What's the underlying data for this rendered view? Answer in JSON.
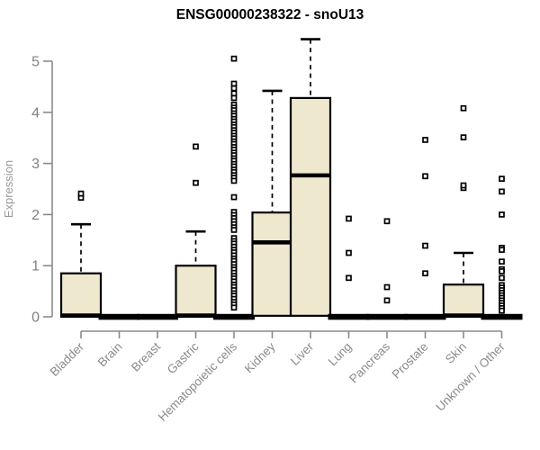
{
  "chart_data": {
    "type": "boxplot",
    "title": "ENSG00000238322 - snoU13",
    "ylabel": "Expression",
    "xlabel": "",
    "ylim": [
      0,
      5
    ],
    "yticks": [
      0,
      1,
      2,
      3,
      4,
      5
    ],
    "grid": false,
    "legend": "none",
    "categories": [
      "Bladder",
      "Brain",
      "Breast",
      "Gastric",
      "Hematopoietic cells",
      "Kidney",
      "Liver",
      "Lung",
      "Pancreas",
      "Prostate",
      "Skin",
      "Unknown / Other"
    ],
    "series": [
      {
        "category": "Bladder",
        "whisker_low": 0,
        "q1": 0,
        "median": 0,
        "q3": 0.85,
        "whisker_high": 1.81,
        "outliers": [
          2.33,
          2.41
        ]
      },
      {
        "category": "Brain",
        "whisker_low": 0,
        "q1": 0,
        "median": 0,
        "q3": 0,
        "whisker_high": 0,
        "outliers": []
      },
      {
        "category": "Breast",
        "whisker_low": 0,
        "q1": 0,
        "median": 0,
        "q3": 0,
        "whisker_high": 0,
        "outliers": []
      },
      {
        "category": "Gastric",
        "whisker_low": 0,
        "q1": 0,
        "median": 0,
        "q3": 1.0,
        "whisker_high": 1.67,
        "outliers": [
          2.62,
          3.33
        ]
      },
      {
        "category": "Hematopoietic cells",
        "whisker_low": 0,
        "q1": 0,
        "median": 0,
        "q3": 0,
        "whisker_high": 0,
        "outliers": [
          5.05,
          4.56,
          4.47,
          4.37,
          4.28,
          4.15,
          4.09,
          4.04,
          3.98,
          3.93,
          3.87,
          3.82,
          3.76,
          3.71,
          3.65,
          3.6,
          3.54,
          3.49,
          3.43,
          3.38,
          3.32,
          3.27,
          3.21,
          3.16,
          3.1,
          3.05,
          2.99,
          2.94,
          2.88,
          2.83,
          2.77,
          2.72,
          2.66,
          2.34,
          2.05,
          1.99,
          1.93,
          1.87,
          1.81,
          1.75,
          1.7,
          1.54,
          1.48,
          1.43,
          1.37,
          1.31,
          1.26,
          1.2,
          1.14,
          1.09,
          1.03,
          0.97,
          0.92,
          0.86,
          0.8,
          0.75,
          0.69,
          0.63,
          0.58,
          0.52,
          0.46,
          0.41,
          0.35,
          0.29,
          0.24,
          0.18
        ]
      },
      {
        "category": "Kidney",
        "whisker_low": 0,
        "q1": 0.02,
        "median": 1.43,
        "q3": 2.04,
        "whisker_high": 4.42,
        "outliers": []
      },
      {
        "category": "Liver",
        "whisker_low": 0,
        "q1": 0.02,
        "median": 2.74,
        "q3": 4.28,
        "whisker_high": 5.43,
        "outliers": []
      },
      {
        "category": "Lung",
        "whisker_low": 0,
        "q1": 0,
        "median": 0,
        "q3": 0,
        "whisker_high": 0,
        "outliers": [
          0.76,
          1.25,
          1.92
        ]
      },
      {
        "category": "Pancreas",
        "whisker_low": 0,
        "q1": 0,
        "median": 0,
        "q3": 0,
        "whisker_high": 0,
        "outliers": [
          0.32,
          0.58,
          1.87
        ]
      },
      {
        "category": "Prostate",
        "whisker_low": 0,
        "q1": 0,
        "median": 0,
        "q3": 0,
        "whisker_high": 0,
        "outliers": [
          0.85,
          1.39,
          2.75,
          3.46
        ]
      },
      {
        "category": "Skin",
        "whisker_low": 0,
        "q1": 0,
        "median": 0,
        "q3": 0.63,
        "whisker_high": 1.25,
        "outliers": [
          2.52,
          2.57,
          3.51,
          4.08
        ]
      },
      {
        "category": "Unknown / Other",
        "whisker_low": 0,
        "q1": 0,
        "median": 0,
        "q3": 0,
        "whisker_high": 0,
        "outliers": [
          2.7,
          2.45,
          2.0,
          1.35,
          1.31,
          1.08,
          0.93,
          0.89,
          0.76,
          0.62,
          0.57,
          0.52,
          0.47,
          0.42,
          0.37,
          0.32,
          0.27,
          0.22,
          0.17,
          0.12
        ]
      }
    ],
    "colors": {
      "box_fill": "#EDE8CE",
      "box_border": "#000000",
      "median": "#000000",
      "outlier": "#000000",
      "axis": "#8a8a8a",
      "tick_label": "#808080",
      "title": "#000000",
      "background": "#ffffff"
    }
  }
}
